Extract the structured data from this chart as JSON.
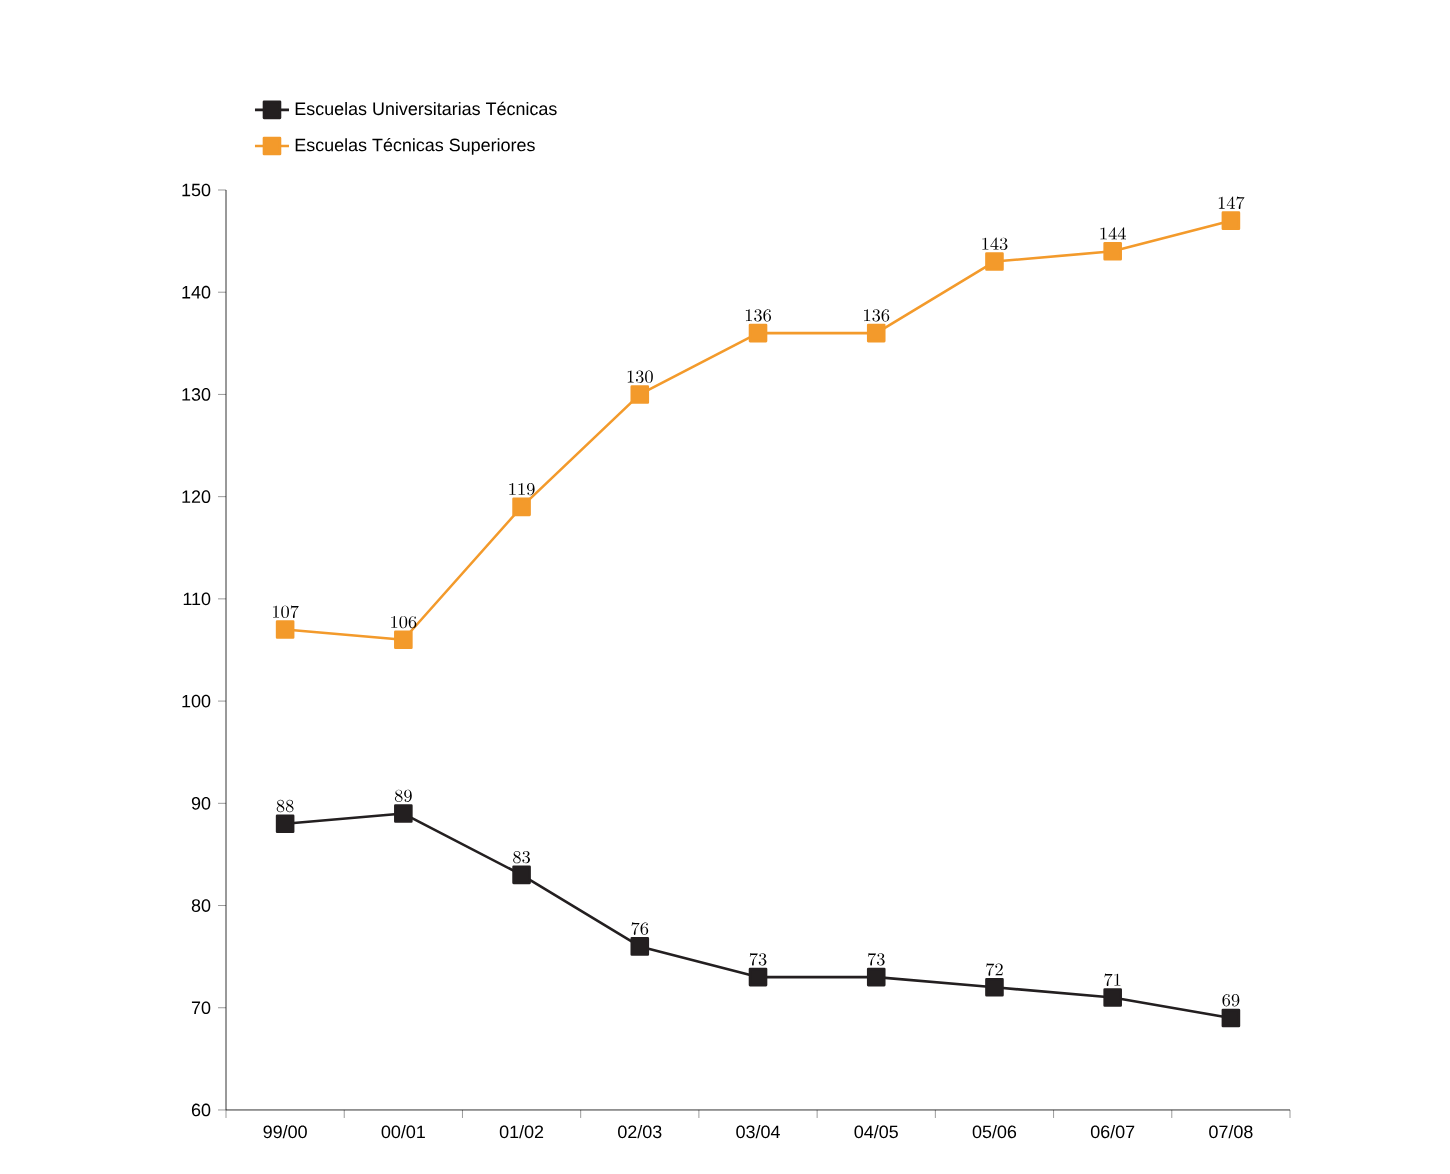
{
  "chart_data": {
    "type": "line",
    "categories": [
      "99/00",
      "00/01",
      "01/02",
      "02/03",
      "03/04",
      "04/05",
      "05/06",
      "06/07",
      "07/08"
    ],
    "series": [
      {
        "name": "Escuelas Universitarias Técnicas",
        "color": "#231f20",
        "values": [
          88,
          89,
          83,
          76,
          73,
          73,
          72,
          71,
          69
        ]
      },
      {
        "name": "Escuelas Técnicas Superiores",
        "color": "#f39a2b",
        "values": [
          107,
          106,
          119,
          130,
          136,
          136,
          143,
          144,
          147
        ]
      }
    ],
    "ylim": [
      60,
      150
    ],
    "yticks": [
      60,
      70,
      80,
      90,
      100,
      110,
      120,
      130,
      140,
      150
    ],
    "marker": "square",
    "line_style": "solid",
    "legend": "top left",
    "data_labels": true
  }
}
